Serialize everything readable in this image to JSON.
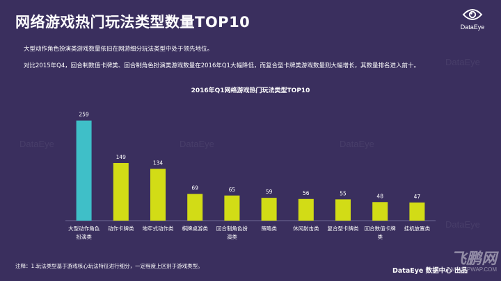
{
  "page_title": "网络游戏热门玩法类型数量TOP10",
  "brand": {
    "logo_text": "DataEye",
    "watermark": "DataEye"
  },
  "description": [
    "大型动作角色扮演类游戏数量依旧在网游细分玩法类型中处于领先地位。",
    "对比2015年Q4，回合制数值卡牌类、回合制角色扮演类游戏数量在2016年Q1大幅降低，而复合型卡牌类游戏数量则大幅增长，其数量排名进入前十。"
  ],
  "footnote": "注释：1.玩法类型基于游戏核心玩法特征进行细分，一定程度上区别于游戏类型。",
  "source_credit": "DataEye 数据中心 出品",
  "corner_watermark": {
    "big": "飞鹏网",
    "small": "WWW.FPWAP.COM"
  },
  "colors": {
    "background": "#3a2f5e",
    "highlight_bar": "#3fbfc8",
    "bar": "#d2dc16"
  },
  "chart_data": {
    "type": "bar",
    "title": "2016年Q1网络游戏热门玩法类型TOP10",
    "categories": [
      "大型动作角色扮演类",
      "动作卡牌类",
      "地牢式动作类",
      "棋牌桌游类",
      "回合制角色扮演类",
      "策略类",
      "休闲射击类",
      "复合型卡牌类",
      "回合数值卡牌类",
      "挂机放置类"
    ],
    "category_lines": [
      [
        "大型动作角色",
        "扮演类"
      ],
      [
        "动作卡牌类"
      ],
      [
        "地牢式动作类"
      ],
      [
        "棋牌桌游类"
      ],
      [
        "回合制角色扮",
        "演类"
      ],
      [
        "策略类"
      ],
      [
        "休闲射击类"
      ],
      [
        "复合型卡牌类"
      ],
      [
        "回合数值卡牌",
        "类"
      ],
      [
        "挂机放置类"
      ]
    ],
    "values": [
      259,
      149,
      134,
      69,
      65,
      59,
      56,
      55,
      48,
      47
    ],
    "highlight_index": 0,
    "xlabel": "",
    "ylabel": "",
    "ylim": [
      0,
      280
    ],
    "grid": false
  }
}
